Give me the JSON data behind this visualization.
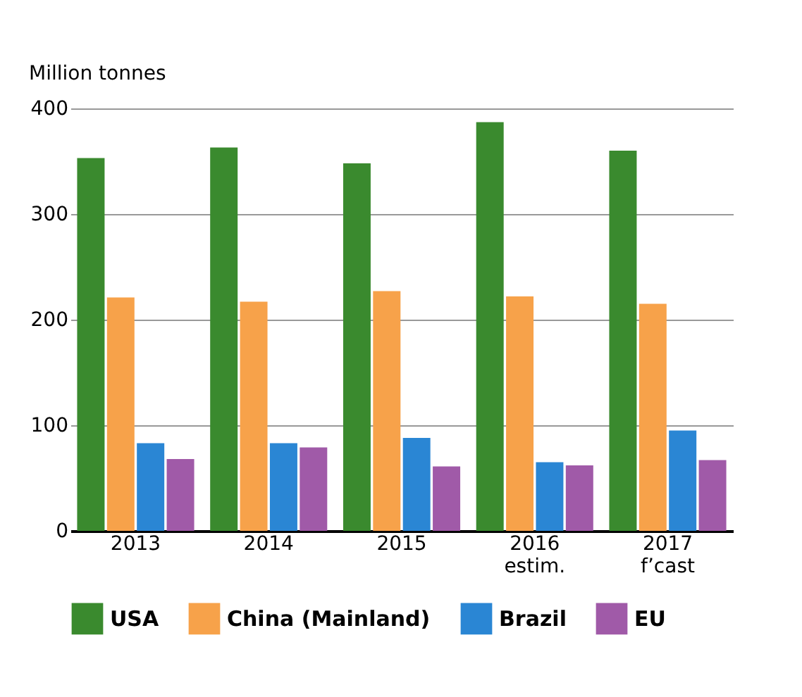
{
  "chart_data": {
    "type": "bar",
    "ylabel": "Million tonnes",
    "categories": [
      "2013",
      "2014",
      "2015",
      "2016\nestim.",
      "2017\nf’cast"
    ],
    "series": [
      {
        "name": "USA",
        "color": "#3a8a2e",
        "values": [
          353,
          363,
          348,
          387,
          360
        ]
      },
      {
        "name": "China (Mainland)",
        "color": "#f7a24a",
        "values": [
          221,
          217,
          227,
          222,
          215
        ]
      },
      {
        "name": "Brazil",
        "color": "#2a86d4",
        "values": [
          83,
          83,
          88,
          65,
          95
        ]
      },
      {
        "name": "EU",
        "color": "#a05aa8",
        "values": [
          68,
          79,
          61,
          62,
          67
        ]
      }
    ],
    "ylim": [
      0,
      400
    ],
    "yticks": [
      0,
      100,
      200,
      300,
      400
    ],
    "grid": "y",
    "legend": "bottom"
  }
}
